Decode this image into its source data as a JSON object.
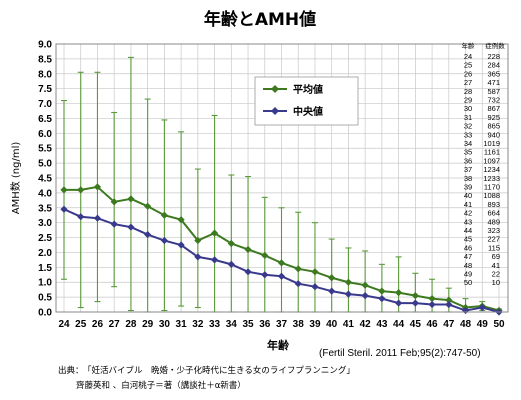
{
  "chart_data": {
    "type": "line",
    "title": "年齢とAMH値",
    "ylabel": "AMH数 (ng/ml)",
    "xlabel": "年齢",
    "ylim": [
      0,
      9
    ],
    "yticks": [
      "0.0",
      "0.5",
      "1.0",
      "1.5",
      "2.0",
      "2.5",
      "3.0",
      "3.5",
      "4.0",
      "4.5",
      "5.0",
      "5.5",
      "6.0",
      "6.5",
      "7.0",
      "7.5",
      "8.0",
      "8.5",
      "9.0"
    ],
    "x": [
      24,
      25,
      26,
      27,
      28,
      29,
      30,
      31,
      32,
      33,
      34,
      35,
      36,
      37,
      38,
      39,
      40,
      41,
      42,
      43,
      44,
      45,
      46,
      47,
      48,
      49,
      50
    ],
    "grid": true,
    "legend_position": "upper-center",
    "series": [
      {
        "name": "平均値",
        "color": "#3d7a1f",
        "marker": "diamond",
        "values": [
          4.1,
          4.1,
          4.2,
          3.7,
          3.8,
          3.55,
          3.25,
          3.1,
          2.4,
          2.65,
          2.3,
          2.1,
          1.9,
          1.65,
          1.45,
          1.35,
          1.15,
          1.0,
          0.9,
          0.7,
          0.65,
          0.55,
          0.45,
          0.4,
          0.15,
          0.2,
          0.05
        ],
        "error_upper": [
          7.1,
          8.05,
          8.05,
          6.7,
          8.55,
          7.15,
          6.45,
          6.05,
          4.8,
          6.6,
          4.6,
          4.55,
          3.85,
          3.5,
          3.35,
          3.0,
          2.45,
          2.15,
          2.05,
          1.6,
          1.85,
          1.3,
          1.1,
          0.8,
          0.45,
          0.35,
          0.1
        ],
        "error_lower": [
          1.1,
          0.15,
          0.35,
          0.85,
          0.05,
          0.0,
          0.05,
          0.2,
          0.15,
          0.0,
          0.0,
          0.0,
          0.0,
          0.0,
          0.0,
          0.0,
          0.0,
          0.0,
          0.0,
          0.0,
          0.0,
          0.0,
          0.0,
          0.0,
          0.0,
          0.05,
          0.0
        ]
      },
      {
        "name": "中央値",
        "color": "#3a3a8c",
        "marker": "diamond",
        "values": [
          3.45,
          3.2,
          3.15,
          2.95,
          2.85,
          2.6,
          2.4,
          2.25,
          1.85,
          1.75,
          1.6,
          1.35,
          1.25,
          1.2,
          0.95,
          0.85,
          0.7,
          0.6,
          0.55,
          0.45,
          0.3,
          0.3,
          0.25,
          0.25,
          0.05,
          0.15,
          0.0
        ]
      }
    ],
    "sample_table": {
      "headers": [
        "年齢",
        "症例数"
      ],
      "rows": [
        [
          "24",
          "228"
        ],
        [
          "25",
          "284"
        ],
        [
          "26",
          "365"
        ],
        [
          "27",
          "471"
        ],
        [
          "28",
          "587"
        ],
        [
          "29",
          "732"
        ],
        [
          "30",
          "867"
        ],
        [
          "31",
          "925"
        ],
        [
          "32",
          "865"
        ],
        [
          "33",
          "940"
        ],
        [
          "34",
          "1019"
        ],
        [
          "35",
          "1161"
        ],
        [
          "36",
          "1097"
        ],
        [
          "37",
          "1234"
        ],
        [
          "38",
          "1233"
        ],
        [
          "39",
          "1170"
        ],
        [
          "40",
          "1088"
        ],
        [
          "41",
          "893"
        ],
        [
          "42",
          "664"
        ],
        [
          "43",
          "489"
        ],
        [
          "44",
          "323"
        ],
        [
          "45",
          "227"
        ],
        [
          "46",
          "115"
        ],
        [
          "47",
          "69"
        ],
        [
          "48",
          "41"
        ],
        [
          "49",
          "22"
        ],
        [
          "50",
          "10"
        ]
      ]
    },
    "citation": "(Fertil Steril. 2011 Feb;95(2):747-50)",
    "source_label": "出典：",
    "source_line1": "「妊活バイブル　晩婚・少子化時代に生きる女のライフプランニング」",
    "source_line2": "齊藤英和 、白河桃子＝著（講談社＋α新書）"
  }
}
